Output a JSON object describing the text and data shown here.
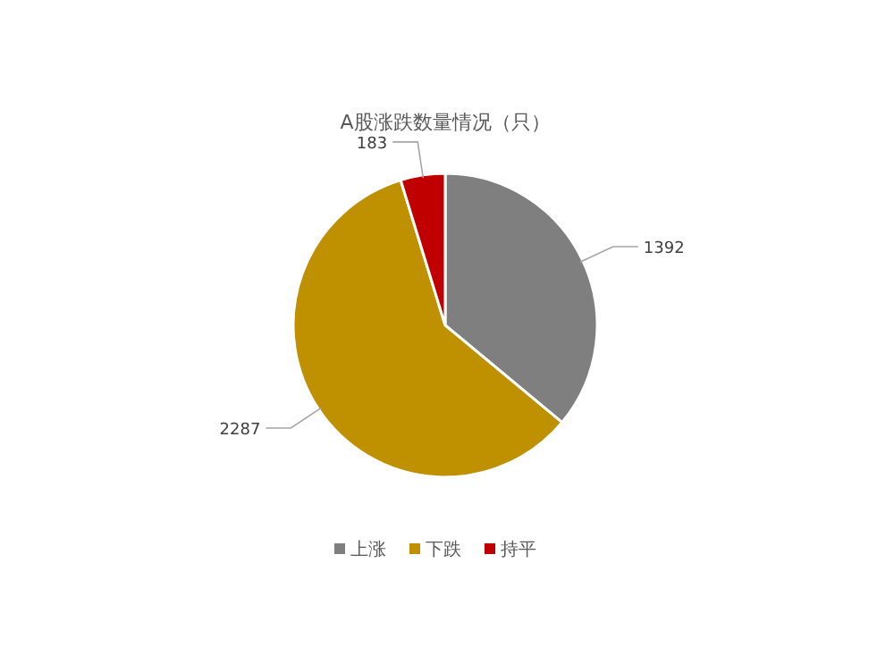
{
  "chart_data": {
    "type": "pie",
    "title": "A股涨跌数量情况（只）",
    "categories": [
      "上涨",
      "下跌",
      "持平"
    ],
    "values": [
      1392,
      2287,
      183
    ],
    "colors": [
      "#7f7f7f",
      "#bf9000",
      "#c00000"
    ],
    "data_labels": true,
    "legend": "bottom"
  }
}
